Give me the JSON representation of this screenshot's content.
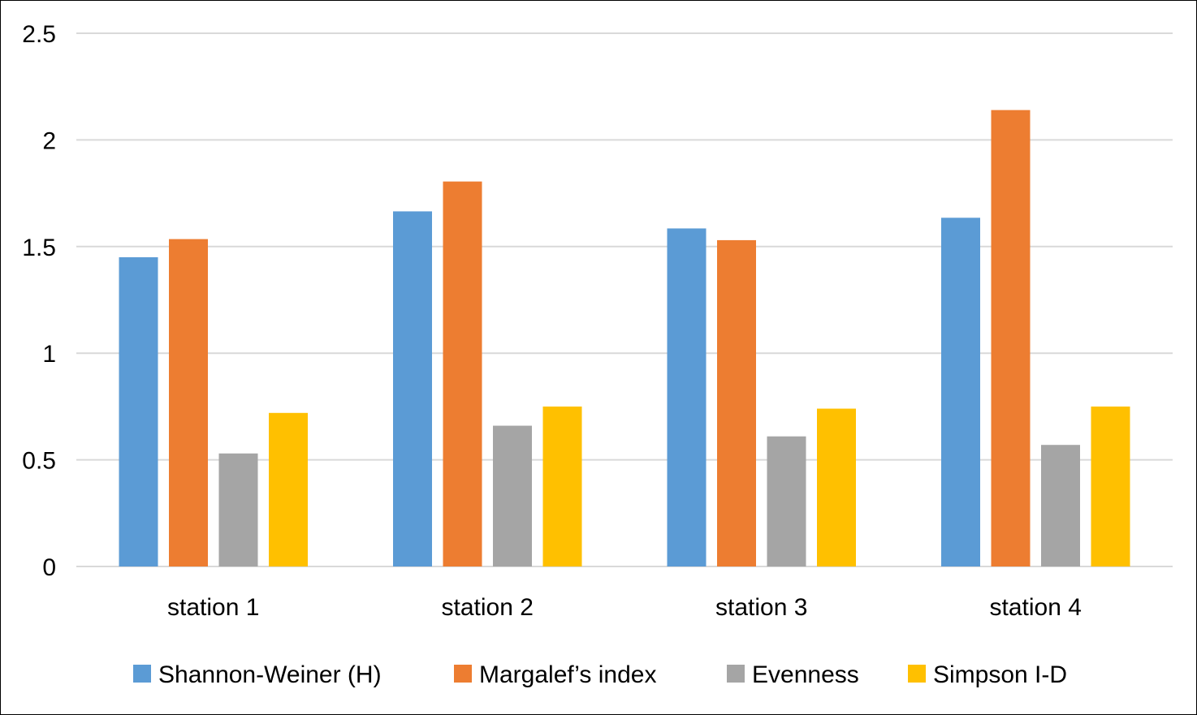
{
  "chart_data": {
    "type": "bar",
    "categories": [
      "station 1",
      "station 2",
      "station 3",
      "station 4"
    ],
    "series": [
      {
        "name": "Shannon-Weiner (H)",
        "values": [
          1.45,
          1.665,
          1.585,
          1.635
        ],
        "color": "#5B9BD5"
      },
      {
        "name": "Margalef’s index",
        "values": [
          1.535,
          1.805,
          1.53,
          2.14
        ],
        "color": "#ED7D31"
      },
      {
        "name": "Evenness",
        "values": [
          0.53,
          0.66,
          0.61,
          0.57
        ],
        "color": "#A5A5A5"
      },
      {
        "name": "Simpson I-D",
        "values": [
          0.72,
          0.75,
          0.74,
          0.75
        ],
        "color": "#FFC000"
      }
    ],
    "yticks": [
      "0",
      "0.5",
      "1",
      "1.5",
      "2",
      "2.5"
    ],
    "ylim": [
      0,
      2.5
    ],
    "title": "",
    "xlabel": "",
    "ylabel": "",
    "grid": true,
    "legend": "bottom",
    "gridline_color": "#D9D9D9"
  }
}
